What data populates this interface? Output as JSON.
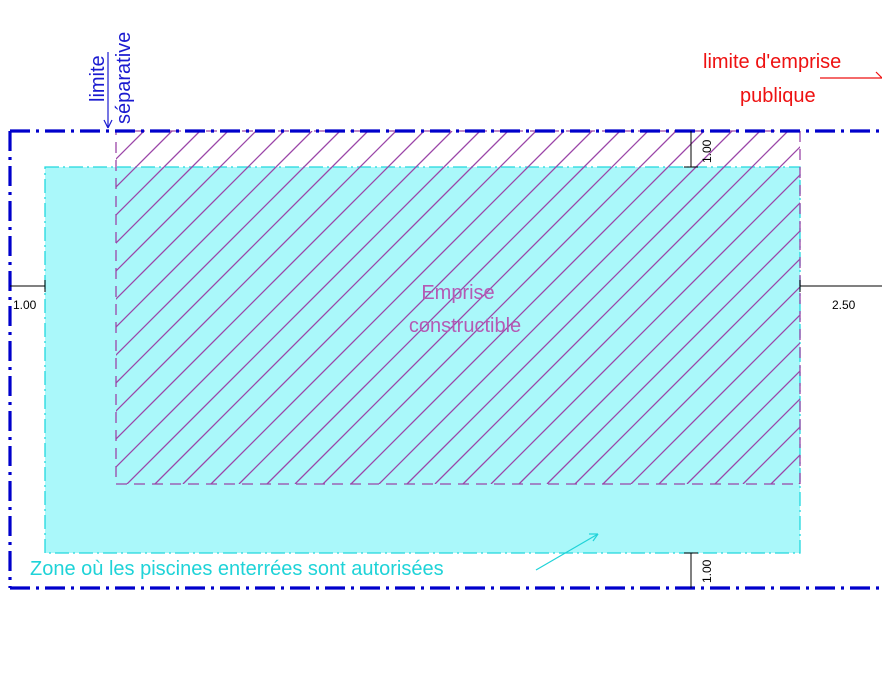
{
  "labels": {
    "limite_separative_line1": "limite",
    "limite_separative_line2": "séparative",
    "limite_emprise_line1": "limite d'emprise",
    "limite_emprise_line2": "publique",
    "emprise_line1": "Emprise",
    "emprise_line2": "constructible",
    "zone_piscines": "Zone où les piscines enterrées sont autorisées"
  },
  "dimensions": {
    "left_setback": "1.00",
    "right_setback": "2.50",
    "top_setback": "1.00",
    "bottom_setback": "1.00"
  },
  "colors": {
    "property_boundary": "#0000cc",
    "pool_zone_fill": "#aaf8fa",
    "pool_zone_stroke": "#22d8de",
    "pool_zone_text": "#1fd3d8",
    "buildable_hatch": "#9b46a8",
    "emprise_text": "#b45ab4",
    "public_limit_text": "#ee1111",
    "separative_text": "#1a1ad0",
    "dimension_ink": "#000000"
  }
}
